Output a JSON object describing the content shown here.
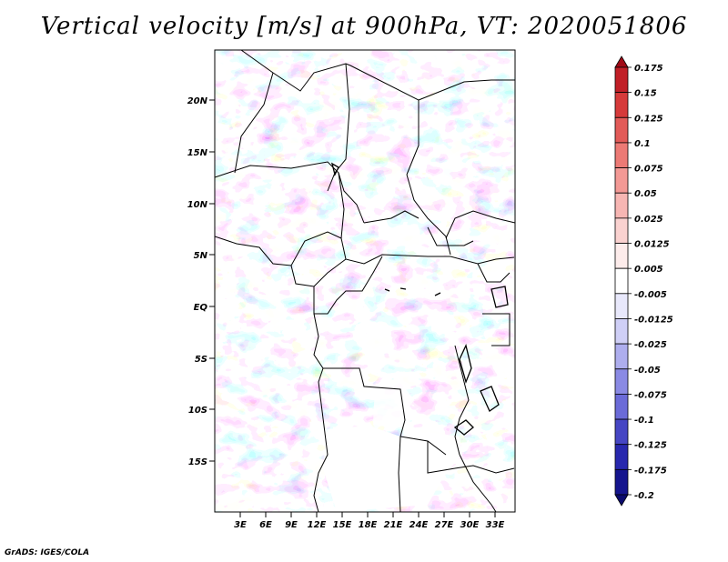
{
  "title": "Vertical velocity [m/s] at 900hPa, VT: 2020051806",
  "credit": "GrADS: IGES/COLA",
  "map": {
    "lat_labels": [
      "20N",
      "15N",
      "10N",
      "5N",
      "EQ",
      "5S",
      "10S",
      "15S"
    ],
    "lon_labels": [
      "3E",
      "6E",
      "9E",
      "12E",
      "15E",
      "18E",
      "21E",
      "24E",
      "27E",
      "30E",
      "33E"
    ]
  },
  "colorbar": {
    "labels": [
      "0.175",
      "0.15",
      "0.125",
      "0.1",
      "0.075",
      "0.05",
      "0.025",
      "0.0125",
      "0.005",
      "-0.005",
      "-0.0125",
      "-0.025",
      "-0.05",
      "-0.075",
      "-0.1",
      "-0.125",
      "-0.175",
      "-0.2"
    ],
    "colors": [
      "#a00a16",
      "#c11f27",
      "#d63a3a",
      "#e25b58",
      "#ec7a75",
      "#f39995",
      "#f7b6b3",
      "#fad2d0",
      "#fdeceb",
      "#ffffff",
      "#e8e8fb",
      "#cfcff6",
      "#aeaeee",
      "#8a8ae4",
      "#6b6bd8",
      "#4646c4",
      "#2828ae",
      "#15158e",
      "#0b0b6e"
    ]
  }
}
